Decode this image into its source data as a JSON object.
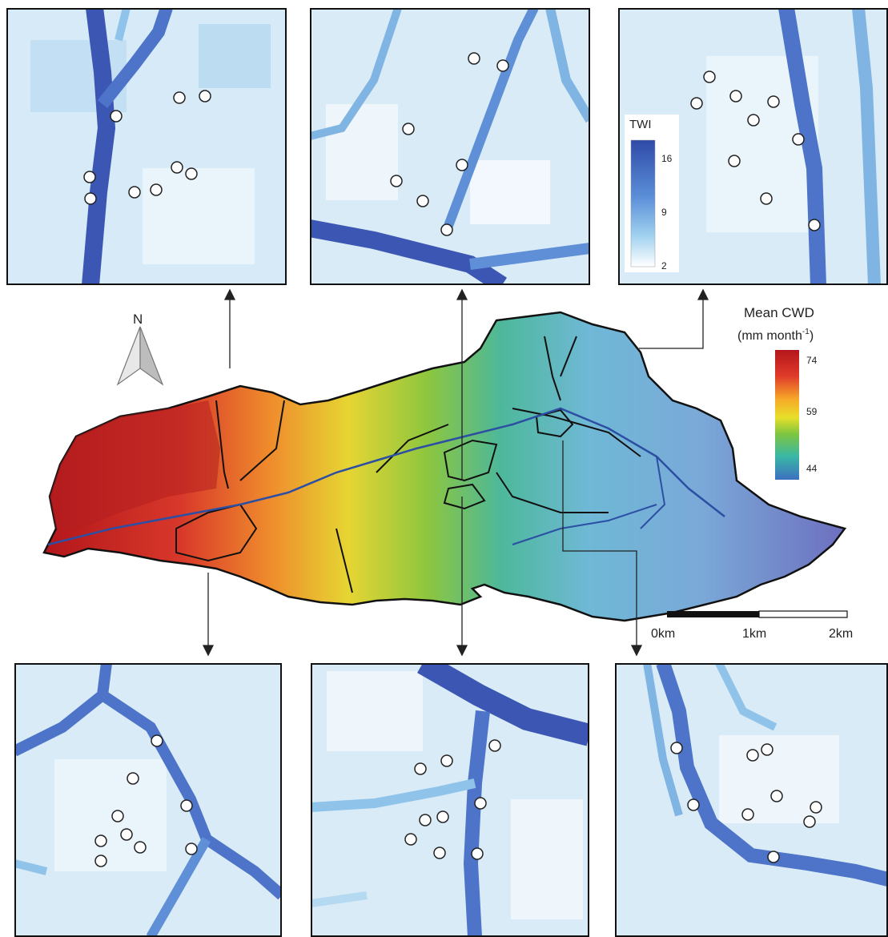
{
  "north_label": "N",
  "twi_legend": {
    "title": "TWI",
    "ticks": [
      "16",
      "9",
      "2"
    ],
    "colors": [
      "#2f4aa8",
      "#5b8fd8",
      "#9fd0ef",
      "#ffffff"
    ]
  },
  "cwd_legend": {
    "title_line1": "Mean CWD",
    "title_line2_pre": "(mm  month",
    "title_line2_sup": "-1",
    "title_line2_post": ")",
    "ticks": [
      "74",
      "59",
      "44"
    ],
    "colors": [
      "#b3161b",
      "#e8452a",
      "#f6a928",
      "#e8e02a",
      "#7cc540",
      "#3ab7a6",
      "#3c6fc0"
    ]
  },
  "scale_bar": {
    "labels": [
      "0km",
      "1km",
      "2km"
    ]
  },
  "colors": {
    "stream_dark": "#3c57b3",
    "stream_mid": "#5f8fd6",
    "background_light": "#dcedf8",
    "watershed_outline": "#111111",
    "plot_marker_fill": "#ffffff",
    "plot_marker_stroke": "#222222"
  }
}
